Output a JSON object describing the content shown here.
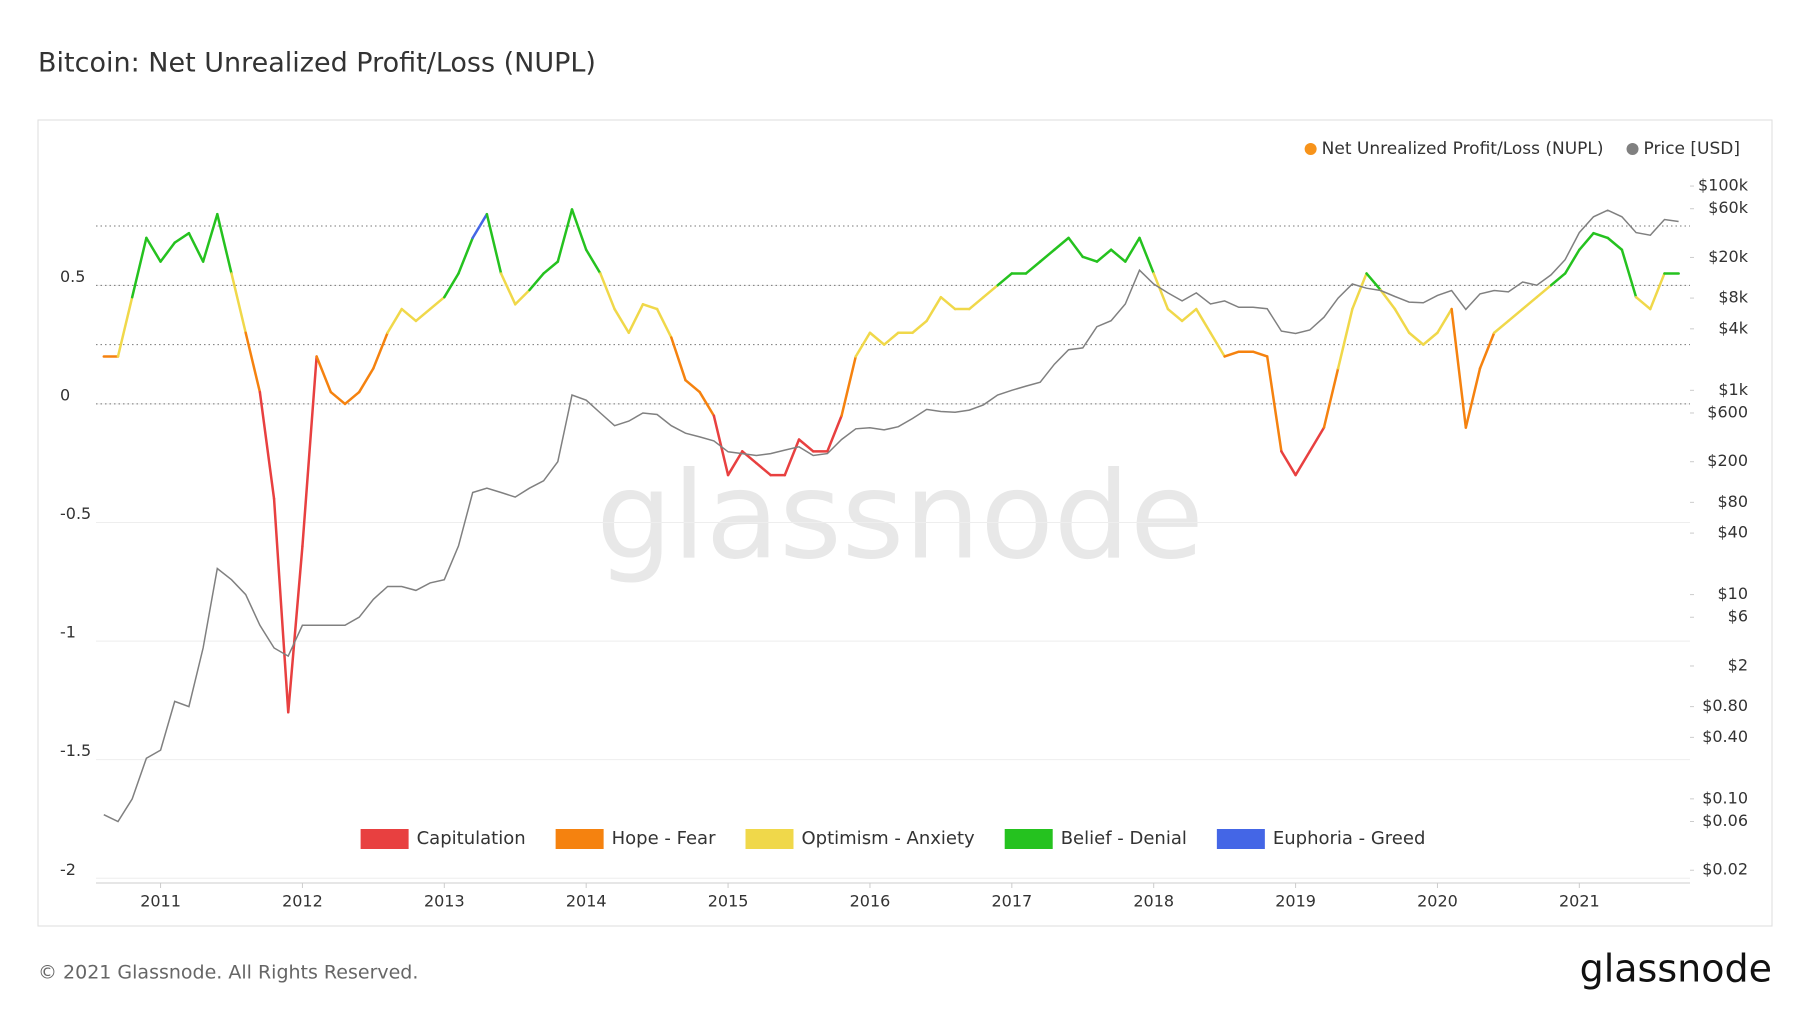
{
  "chart_data": {
    "type": "line",
    "title": "Bitcoin: Net Unrealized Profit/Loss (NUPL)",
    "watermark": "glassnode",
    "footer": "© 2021 Glassnode. All Rights Reserved.",
    "logo": "glassnode",
    "x": [
      2010.6,
      2010.7,
      2010.8,
      2010.9,
      2011.0,
      2011.1,
      2011.2,
      2011.3,
      2011.4,
      2011.5,
      2011.6,
      2011.7,
      2011.8,
      2011.9,
      2012.0,
      2012.1,
      2012.2,
      2012.3,
      2012.4,
      2012.5,
      2012.6,
      2012.7,
      2012.8,
      2012.9,
      2013.0,
      2013.1,
      2013.2,
      2013.3,
      2013.4,
      2013.5,
      2013.6,
      2013.7,
      2013.8,
      2013.9,
      2014.0,
      2014.1,
      2014.2,
      2014.3,
      2014.4,
      2014.5,
      2014.6,
      2014.7,
      2014.8,
      2014.9,
      2015.0,
      2015.1,
      2015.2,
      2015.3,
      2015.4,
      2015.5,
      2015.6,
      2015.7,
      2015.8,
      2015.9,
      2016.0,
      2016.1,
      2016.2,
      2016.3,
      2016.4,
      2016.5,
      2016.6,
      2016.7,
      2016.8,
      2016.9,
      2017.0,
      2017.1,
      2017.2,
      2017.3,
      2017.4,
      2017.5,
      2017.6,
      2017.7,
      2017.8,
      2017.9,
      2018.0,
      2018.1,
      2018.2,
      2018.3,
      2018.4,
      2018.5,
      2018.6,
      2018.7,
      2018.8,
      2018.9,
      2019.0,
      2019.1,
      2019.2,
      2019.3,
      2019.4,
      2019.5,
      2019.6,
      2019.7,
      2019.8,
      2019.9,
      2020.0,
      2020.1,
      2020.2,
      2020.3,
      2020.4,
      2020.5,
      2020.6,
      2020.7,
      2020.8,
      2020.9,
      2021.0,
      2021.1,
      2021.2,
      2021.3,
      2021.4,
      2021.5,
      2021.6,
      2021.7
    ],
    "series": [
      {
        "name": "Net Unrealized Profit/Loss (NUPL)",
        "color": "#f7931a",
        "values": [
          0.2,
          0.2,
          0.45,
          0.7,
          0.6,
          0.68,
          0.72,
          0.6,
          0.8,
          0.55,
          0.3,
          0.05,
          -0.4,
          -1.3,
          -0.6,
          0.2,
          0.05,
          0.0,
          0.05,
          0.15,
          0.3,
          0.4,
          0.35,
          0.4,
          0.45,
          0.55,
          0.7,
          0.8,
          0.55,
          0.42,
          0.48,
          0.55,
          0.6,
          0.82,
          0.65,
          0.55,
          0.4,
          0.3,
          0.42,
          0.4,
          0.28,
          0.1,
          0.05,
          -0.05,
          -0.3,
          -0.2,
          -0.25,
          -0.3,
          -0.3,
          -0.15,
          -0.2,
          -0.2,
          -0.05,
          0.2,
          0.3,
          0.25,
          0.3,
          0.3,
          0.35,
          0.45,
          0.4,
          0.4,
          0.45,
          0.5,
          0.55,
          0.55,
          0.6,
          0.65,
          0.7,
          0.62,
          0.6,
          0.65,
          0.6,
          0.7,
          0.55,
          0.4,
          0.35,
          0.4,
          0.3,
          0.2,
          0.22,
          0.22,
          0.2,
          -0.2,
          -0.3,
          -0.2,
          -0.1,
          0.15,
          0.4,
          0.55,
          0.48,
          0.4,
          0.3,
          0.25,
          0.3,
          0.4,
          -0.1,
          0.15,
          0.3,
          0.35,
          0.4,
          0.45,
          0.5,
          0.55,
          0.65,
          0.72,
          0.7,
          0.65,
          0.45,
          0.4,
          0.55,
          0.55
        ]
      },
      {
        "name": "Price [USD]",
        "color": "#808080",
        "axis": "y2",
        "values": [
          0.07,
          0.06,
          0.1,
          0.25,
          0.3,
          0.9,
          0.8,
          3,
          18,
          14,
          10,
          5,
          3,
          2.5,
          5,
          5,
          5,
          5,
          6,
          9,
          12,
          12,
          11,
          13,
          14,
          30,
          100,
          110,
          100,
          90,
          110,
          130,
          200,
          900,
          800,
          600,
          450,
          500,
          600,
          580,
          450,
          380,
          350,
          320,
          250,
          240,
          230,
          240,
          260,
          280,
          230,
          240,
          330,
          420,
          430,
          410,
          440,
          530,
          650,
          620,
          610,
          640,
          720,
          900,
          1000,
          1100,
          1200,
          1800,
          2500,
          2600,
          4200,
          4800,
          7000,
          15000,
          11000,
          9000,
          7500,
          9000,
          7000,
          7500,
          6500,
          6500,
          6300,
          3800,
          3600,
          3900,
          5200,
          8000,
          11000,
          10000,
          9500,
          8300,
          7300,
          7200,
          8500,
          9500,
          6200,
          8800,
          9500,
          9200,
          11500,
          10700,
          13500,
          19000,
          35000,
          50000,
          58000,
          50000,
          35000,
          33000,
          47000,
          45000
        ]
      }
    ],
    "zones": [
      {
        "name": "Capitulation",
        "color": "#e84040",
        "max": 0
      },
      {
        "name": "Hope - Fear",
        "color": "#f5820f",
        "max": 0.25
      },
      {
        "name": "Optimism - Anxiety",
        "color": "#f0d84a",
        "max": 0.5
      },
      {
        "name": "Belief - Denial",
        "color": "#25c21f",
        "max": 0.75
      },
      {
        "name": "Euphoria - Greed",
        "color": "#4466e6"
      }
    ],
    "xlim": [
      2010.545,
      2021.78
    ],
    "xticks": [
      2011,
      2012,
      2013,
      2014,
      2015,
      2016,
      2017,
      2018,
      2019,
      2020,
      2021
    ],
    "ylim": [
      -2.02,
      1.02
    ],
    "yticks": [
      0.5,
      0,
      -0.5,
      -1,
      -1.5,
      -2
    ],
    "y2lim": [
      0.015,
      172000
    ],
    "y2log": true,
    "y2ticks": [
      {
        "value": 100000,
        "label": "$100k"
      },
      {
        "value": 60000,
        "label": "$60k"
      },
      {
        "value": 20000,
        "label": "$20k"
      },
      {
        "value": 8000,
        "label": "$8k"
      },
      {
        "value": 4000,
        "label": "$4k"
      },
      {
        "value": 1000,
        "label": "$1k"
      },
      {
        "value": 600,
        "label": "$600"
      },
      {
        "value": 200,
        "label": "$200"
      },
      {
        "value": 80,
        "label": "$80"
      },
      {
        "value": 40,
        "label": "$40"
      },
      {
        "value": 10,
        "label": "$10"
      },
      {
        "value": 6,
        "label": "$6"
      },
      {
        "value": 2,
        "label": "$2"
      },
      {
        "value": 0.8,
        "label": "$0.80"
      },
      {
        "value": 0.4,
        "label": "$0.40"
      },
      {
        "value": 0.1,
        "label": "$0.10"
      },
      {
        "value": 0.06,
        "label": "$0.06"
      },
      {
        "value": 0.02,
        "label": "$0.02"
      }
    ],
    "grid": true
  }
}
